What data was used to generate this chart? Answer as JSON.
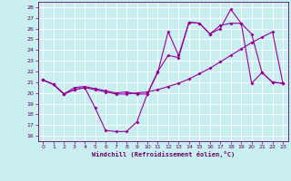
{
  "title": "",
  "xlabel": "Windchill (Refroidissement éolien,°C)",
  "background_color": "#c8eef0",
  "line_color": "#990099",
  "grid_color": "#ffffff",
  "xlim": [
    -0.5,
    23.5
  ],
  "ylim": [
    15.5,
    28.5
  ],
  "xticks": [
    0,
    1,
    2,
    3,
    4,
    5,
    6,
    7,
    8,
    9,
    10,
    11,
    12,
    13,
    14,
    15,
    16,
    17,
    18,
    19,
    20,
    21,
    22,
    23
  ],
  "yticks": [
    16,
    17,
    18,
    19,
    20,
    21,
    22,
    23,
    24,
    25,
    26,
    27,
    28
  ],
  "line1_x": [
    0,
    1,
    2,
    3,
    4,
    5,
    6,
    7,
    8,
    9,
    10,
    11,
    12,
    13,
    14,
    15,
    16,
    17,
    18,
    19,
    20,
    21,
    22,
    23
  ],
  "line1_y": [
    21.2,
    20.8,
    19.9,
    20.3,
    20.5,
    18.6,
    16.5,
    16.4,
    16.4,
    17.3,
    19.9,
    21.9,
    25.7,
    23.5,
    26.6,
    26.5,
    25.5,
    26.0,
    27.8,
    26.5,
    25.5,
    21.9,
    21.0,
    20.9
  ],
  "line2_x": [
    0,
    1,
    2,
    3,
    4,
    5,
    6,
    7,
    8,
    9,
    10,
    11,
    12,
    13,
    14,
    15,
    16,
    17,
    18,
    19,
    20,
    21,
    22,
    23
  ],
  "line2_y": [
    21.2,
    20.8,
    19.9,
    20.3,
    20.5,
    20.3,
    20.1,
    19.9,
    19.9,
    20.0,
    20.1,
    20.3,
    20.6,
    20.9,
    21.3,
    21.8,
    22.3,
    22.9,
    23.5,
    24.1,
    24.7,
    25.2,
    25.7,
    20.9
  ],
  "line3_x": [
    0,
    1,
    2,
    3,
    4,
    5,
    6,
    7,
    8,
    9,
    10,
    11,
    12,
    13,
    14,
    15,
    16,
    17,
    18,
    19,
    20,
    21,
    22,
    23
  ],
  "line3_y": [
    21.2,
    20.8,
    19.9,
    20.5,
    20.6,
    20.4,
    20.2,
    20.0,
    20.1,
    19.9,
    19.9,
    22.0,
    23.5,
    23.3,
    26.6,
    26.5,
    25.5,
    26.3,
    26.5,
    26.5,
    20.9,
    21.9,
    21.0,
    20.9
  ]
}
